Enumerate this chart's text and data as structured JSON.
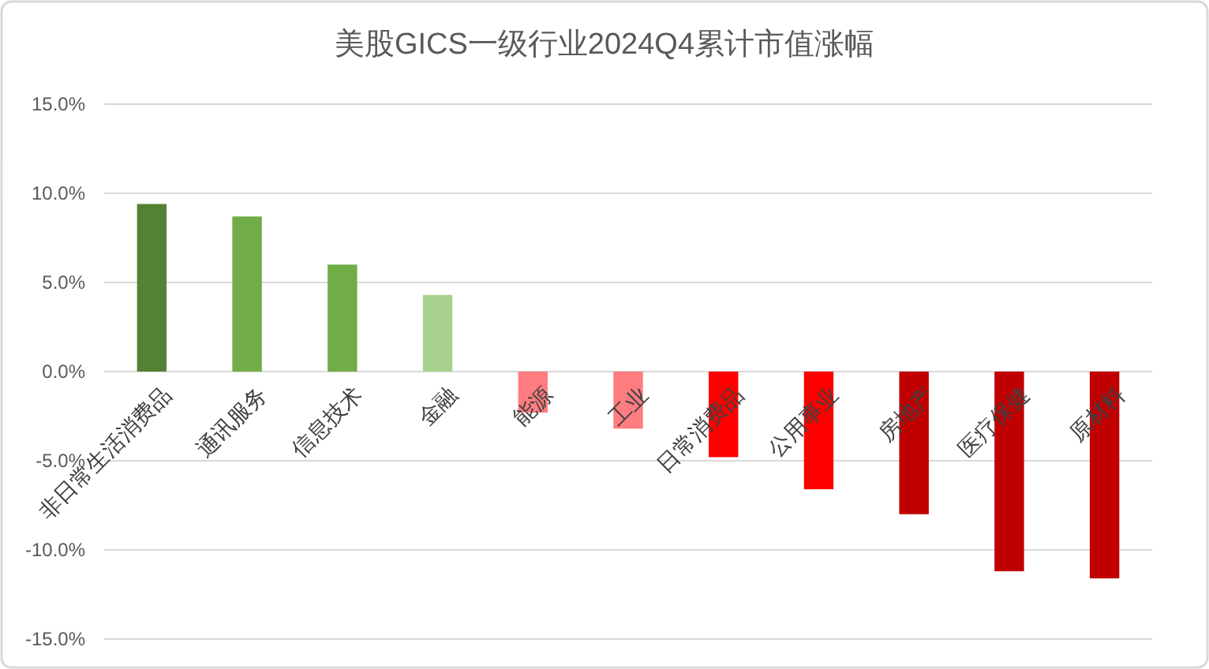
{
  "chart_data": {
    "type": "bar",
    "title": "美股GICS一级行业2024Q4累计市值涨幅",
    "categories": [
      "非日常生活消费品",
      "通讯服务",
      "信息技术",
      "金融",
      "能源",
      "工业",
      "日常消费品",
      "公用事业",
      "房地产",
      "医疗保健",
      "原材料"
    ],
    "values": [
      9.4,
      8.7,
      6.0,
      4.3,
      -2.3,
      -3.2,
      -4.8,
      -6.6,
      -8.0,
      -11.2,
      -11.6
    ],
    "colors": [
      "#548235",
      "#70ad47",
      "#70ad47",
      "#a9d18e",
      "#ff7c80",
      "#ff7c80",
      "#ff0000",
      "#ff0000",
      "#c00000",
      "#c00000",
      "#c00000"
    ],
    "ylim": [
      -15,
      15
    ],
    "yticks": [
      {
        "value": -15,
        "label": "-15.0%"
      },
      {
        "value": -10,
        "label": "-10.0%"
      },
      {
        "value": -5,
        "label": "-5.0%"
      },
      {
        "value": 0,
        "label": "0.0%"
      },
      {
        "value": 5,
        "label": "5.0%"
      },
      {
        "value": 10,
        "label": "10.0%"
      },
      {
        "value": 15,
        "label": "15.0%"
      }
    ],
    "grid": "y"
  }
}
